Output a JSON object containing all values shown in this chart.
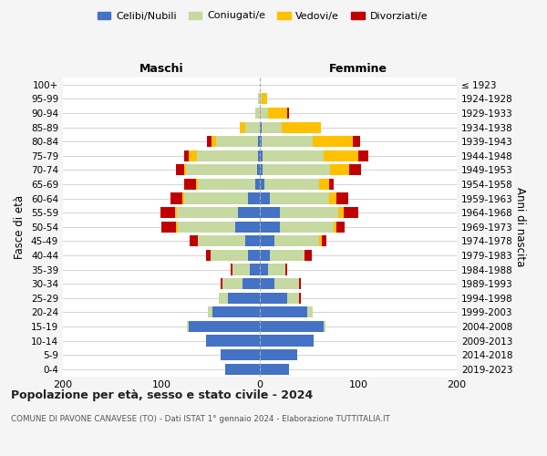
{
  "age_groups": [
    "0-4",
    "5-9",
    "10-14",
    "15-19",
    "20-24",
    "25-29",
    "30-34",
    "35-39",
    "40-44",
    "45-49",
    "50-54",
    "55-59",
    "60-64",
    "65-69",
    "70-74",
    "75-79",
    "80-84",
    "85-89",
    "90-94",
    "95-99",
    "100+"
  ],
  "birth_years": [
    "2019-2023",
    "2014-2018",
    "2009-2013",
    "2004-2008",
    "1999-2003",
    "1994-1998",
    "1989-1993",
    "1984-1988",
    "1979-1983",
    "1974-1978",
    "1969-1973",
    "1964-1968",
    "1959-1963",
    "1954-1958",
    "1949-1953",
    "1944-1948",
    "1939-1943",
    "1934-1938",
    "1929-1933",
    "1924-1928",
    "≤ 1923"
  ],
  "males": {
    "celibi": [
      35,
      40,
      55,
      72,
      48,
      32,
      18,
      10,
      12,
      15,
      25,
      22,
      12,
      5,
      3,
      2,
      2,
      0,
      0,
      0,
      0
    ],
    "coniugati": [
      0,
      0,
      0,
      2,
      5,
      10,
      20,
      18,
      38,
      48,
      58,
      62,
      65,
      58,
      72,
      62,
      42,
      15,
      5,
      2,
      0
    ],
    "vedovi": [
      0,
      0,
      0,
      0,
      0,
      0,
      0,
      0,
      0,
      0,
      2,
      2,
      2,
      2,
      2,
      8,
      5,
      5,
      0,
      0,
      0
    ],
    "divorziati": [
      0,
      0,
      0,
      0,
      0,
      0,
      2,
      2,
      5,
      8,
      15,
      15,
      12,
      12,
      8,
      5,
      5,
      0,
      0,
      0,
      0
    ]
  },
  "females": {
    "nubili": [
      30,
      38,
      55,
      65,
      48,
      28,
      15,
      8,
      10,
      15,
      20,
      20,
      10,
      5,
      3,
      3,
      2,
      2,
      0,
      0,
      0
    ],
    "coniugate": [
      0,
      0,
      0,
      2,
      6,
      12,
      25,
      18,
      35,
      45,
      55,
      60,
      60,
      55,
      68,
      62,
      52,
      20,
      8,
      2,
      0
    ],
    "vedove": [
      0,
      0,
      0,
      0,
      0,
      0,
      0,
      0,
      0,
      3,
      3,
      5,
      8,
      10,
      20,
      35,
      40,
      40,
      20,
      5,
      0
    ],
    "divorziate": [
      0,
      0,
      0,
      0,
      0,
      2,
      2,
      2,
      8,
      5,
      8,
      15,
      12,
      5,
      12,
      10,
      8,
      0,
      2,
      0,
      0
    ]
  },
  "colors": {
    "celibi_nubili": "#4472c4",
    "coniugati": "#c5d9a0",
    "vedovi": "#ffc000",
    "divorziati": "#c00000"
  },
  "title": "Popolazione per età, sesso e stato civile - 2024",
  "subtitle": "COMUNE DI PAVONE CANAVESE (TO) - Dati ISTAT 1° gennaio 2024 - Elaborazione TUTTITALIA.IT",
  "xlabel_left": "Maschi",
  "xlabel_right": "Femmine",
  "ylabel_left": "Fasce di età",
  "ylabel_right": "Anni di nascita",
  "xlim": 200,
  "background_color": "#f5f5f5",
  "plot_bg": "#ffffff"
}
